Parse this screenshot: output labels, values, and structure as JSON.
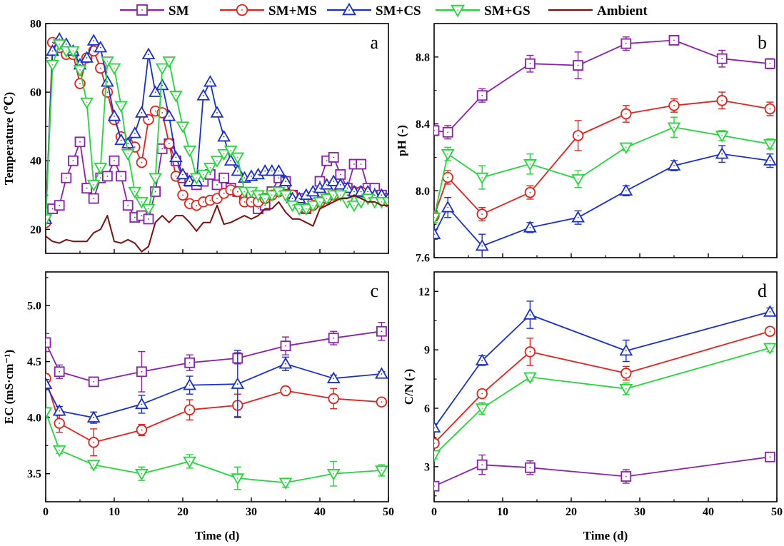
{
  "legend": [
    {
      "label": "SM",
      "color": "#8B1FB0",
      "marker": "square"
    },
    {
      "label": "SM+MS",
      "color": "#E8201A",
      "marker": "circle"
    },
    {
      "label": "SM+CS",
      "color": "#1A2FD0",
      "marker": "triangle-up"
    },
    {
      "label": "SM+GS",
      "color": "#22D838",
      "marker": "triangle-down"
    },
    {
      "label": "Ambient",
      "color": "#7A1010",
      "marker": "none"
    }
  ],
  "chart_data": [
    {
      "id": "a",
      "type": "line",
      "panel_letter": "a",
      "xlabel": "",
      "ylabel": "Temperature (℃)",
      "xlim": [
        0,
        50
      ],
      "ylim": [
        13,
        80
      ],
      "x_ticks": [
        0,
        10,
        20,
        30,
        40,
        50
      ],
      "x_tick_labels": [],
      "y_ticks": [
        20,
        40,
        60,
        80
      ],
      "y_tick_labels": [
        "20",
        "40",
        "60",
        "80"
      ],
      "series": [
        {
          "name": "SM",
          "color": "#8B1FB0",
          "marker": "square",
          "x": [
            0,
            1,
            2,
            3,
            4,
            5,
            6,
            7,
            8,
            9,
            10,
            11,
            12,
            13,
            14,
            15,
            16,
            17,
            18,
            19,
            20,
            21,
            22,
            23,
            24,
            25,
            26,
            27,
            28,
            29,
            30,
            31,
            32,
            33,
            34,
            35,
            36,
            37,
            38,
            39,
            40,
            41,
            42,
            43,
            44,
            45,
            46,
            47,
            48,
            49,
            50
          ],
          "y": [
            25,
            26,
            27,
            35,
            40,
            45.5,
            32,
            29,
            35,
            35.5,
            40,
            35.5,
            27,
            23.5,
            24,
            23,
            31,
            43.5,
            45,
            40,
            35,
            34,
            33,
            34,
            36,
            33,
            35,
            32,
            31,
            30,
            30,
            26,
            27,
            31,
            35,
            34,
            30,
            29,
            26,
            29,
            34,
            40,
            41,
            36,
            32,
            39,
            39,
            32,
            32,
            30,
            29
          ]
        },
        {
          "name": "SM+MS",
          "color": "#E8201A",
          "marker": "circle",
          "x": [
            0,
            1,
            2,
            3,
            4,
            5,
            6,
            7,
            8,
            9,
            10,
            11,
            12,
            13,
            14,
            15,
            16,
            17,
            18,
            19,
            20,
            21,
            22,
            23,
            24,
            25,
            26,
            27,
            28,
            29,
            30,
            31,
            32,
            33,
            34,
            35,
            36,
            37,
            38,
            39,
            40,
            41,
            42,
            43,
            44,
            45,
            46,
            47,
            48,
            49,
            50
          ],
          "y": [
            22,
            74.5,
            73,
            71,
            71,
            62.5,
            70,
            72,
            67,
            60,
            52,
            47,
            45,
            44,
            39.5,
            52,
            54.5,
            54,
            45,
            35.5,
            30,
            27.5,
            27,
            28,
            28.5,
            29,
            30.5,
            31.5,
            31,
            28,
            28,
            28,
            29,
            30,
            31,
            33,
            30,
            27,
            26,
            27,
            28,
            29,
            30,
            31,
            30,
            31,
            31,
            30,
            29,
            29,
            28
          ]
        },
        {
          "name": "SM+CS",
          "color": "#1A2FD0",
          "marker": "triangle-up",
          "x": [
            0,
            1,
            2,
            3,
            4,
            5,
            6,
            7,
            8,
            9,
            10,
            11,
            12,
            13,
            14,
            15,
            16,
            17,
            18,
            19,
            20,
            21,
            22,
            23,
            24,
            25,
            26,
            27,
            28,
            29,
            30,
            31,
            32,
            33,
            34,
            35,
            36,
            37,
            38,
            39,
            40,
            41,
            42,
            43,
            44,
            45,
            46,
            47,
            48,
            49,
            50
          ],
          "y": [
            23,
            72,
            75.5,
            74,
            72,
            68,
            70,
            75,
            73,
            63,
            53,
            46,
            45,
            48,
            54,
            71,
            60,
            62,
            53,
            41,
            36,
            34,
            34,
            59,
            63,
            54,
            47,
            40,
            37,
            35,
            35.5,
            36,
            37,
            37,
            37,
            34,
            29,
            29,
            30,
            31,
            32,
            33,
            34,
            33,
            32,
            31,
            31,
            31,
            30,
            30,
            29
          ]
        },
        {
          "name": "SM+GS",
          "color": "#22D838",
          "marker": "triangle-down",
          "x": [
            0,
            1,
            2,
            3,
            4,
            5,
            6,
            7,
            8,
            9,
            10,
            11,
            12,
            13,
            14,
            15,
            16,
            17,
            18,
            19,
            20,
            21,
            22,
            23,
            24,
            25,
            26,
            27,
            28,
            29,
            30,
            31,
            32,
            33,
            34,
            35,
            36,
            37,
            38,
            39,
            40,
            41,
            42,
            43,
            44,
            45,
            46,
            47,
            48,
            49,
            50
          ],
          "y": [
            23,
            68,
            74,
            72,
            72,
            66.5,
            57,
            33,
            38,
            69,
            67,
            56,
            42,
            31,
            28,
            26,
            35,
            67,
            69,
            59,
            50,
            43,
            35,
            36,
            38,
            40,
            42,
            43,
            41,
            31,
            31,
            30,
            29,
            30,
            31,
            30,
            27,
            26,
            26,
            27,
            28,
            29,
            30,
            30,
            28,
            27,
            28,
            29,
            28,
            28,
            28
          ]
        },
        {
          "name": "Ambient",
          "color": "#7A1010",
          "marker": "none",
          "x": [
            0,
            1,
            2,
            3,
            4,
            5,
            6,
            7,
            8,
            9,
            10,
            11,
            12,
            13,
            14,
            15,
            16,
            17,
            18,
            19,
            20,
            21,
            22,
            23,
            24,
            25,
            26,
            27,
            28,
            29,
            30,
            31,
            32,
            33,
            34,
            35,
            36,
            37,
            38,
            39,
            40,
            41,
            42,
            43,
            44,
            45,
            46,
            47,
            48,
            49,
            50
          ],
          "y": [
            18,
            16.5,
            16,
            17,
            16.5,
            16.5,
            16.5,
            19,
            20,
            24,
            16.5,
            16,
            17,
            16,
            13.5,
            15,
            22,
            24,
            22,
            24,
            24,
            22,
            19.5,
            22,
            22,
            27,
            21.5,
            22,
            23,
            24,
            23,
            24,
            26,
            26,
            28,
            25,
            23,
            23,
            22,
            21,
            26,
            27,
            28,
            29,
            29,
            30,
            29,
            28,
            28,
            27,
            27
          ]
        }
      ]
    },
    {
      "id": "b",
      "type": "line",
      "panel_letter": "b",
      "xlabel": "",
      "ylabel": "pH (-)",
      "xlim": [
        0,
        50
      ],
      "ylim": [
        7.6,
        9.0
      ],
      "x_ticks": [
        0,
        10,
        20,
        30,
        40,
        50
      ],
      "x_tick_labels": [],
      "y_ticks": [
        7.6,
        8.0,
        8.4,
        8.8
      ],
      "y_tick_labels": [
        "7.6",
        "8.0",
        "8.4",
        "8.8"
      ],
      "series": [
        {
          "name": "SM",
          "color": "#8B1FB0",
          "marker": "square",
          "x": [
            0,
            2,
            7,
            14,
            21,
            28,
            35,
            42,
            49
          ],
          "y": [
            8.36,
            8.35,
            8.57,
            8.76,
            8.75,
            8.88,
            8.9,
            8.79,
            8.76
          ],
          "err": [
            0.03,
            0.04,
            0.04,
            0.05,
            0.08,
            0.04,
            0.02,
            0.05,
            0.03
          ]
        },
        {
          "name": "SM+MS",
          "color": "#E8201A",
          "marker": "circle",
          "x": [
            0,
            2,
            7,
            14,
            21,
            28,
            35,
            42,
            49
          ],
          "y": [
            7.85,
            8.08,
            7.86,
            7.99,
            8.33,
            8.46,
            8.51,
            8.54,
            8.49
          ],
          "err": [
            0.03,
            0.04,
            0.04,
            0.04,
            0.09,
            0.05,
            0.04,
            0.05,
            0.04
          ]
        },
        {
          "name": "SM+CS",
          "color": "#1A2FD0",
          "marker": "triangle-up",
          "x": [
            0,
            2,
            7,
            14,
            21,
            28,
            35,
            42,
            49
          ],
          "y": [
            7.74,
            7.9,
            7.67,
            7.78,
            7.84,
            8.0,
            8.15,
            8.22,
            8.18
          ],
          "err": [
            0.03,
            0.06,
            0.07,
            0.03,
            0.04,
            0.03,
            0.03,
            0.05,
            0.04
          ]
        },
        {
          "name": "SM+GS",
          "color": "#22D838",
          "marker": "triangle-down",
          "x": [
            0,
            2,
            7,
            14,
            21,
            28,
            35,
            42,
            49
          ],
          "y": [
            7.84,
            8.22,
            8.08,
            8.16,
            8.07,
            8.26,
            8.38,
            8.33,
            8.28
          ],
          "err": [
            0.03,
            0.04,
            0.07,
            0.06,
            0.05,
            0.02,
            0.06,
            0.03,
            0.03
          ]
        }
      ]
    },
    {
      "id": "c",
      "type": "line",
      "panel_letter": "c",
      "xlabel": "Time (d)",
      "ylabel": "EC (mS·cm⁻¹)",
      "xlim": [
        0,
        50
      ],
      "ylim": [
        3.25,
        5.3
      ],
      "x_ticks": [
        0,
        10,
        20,
        30,
        40,
        50
      ],
      "x_tick_labels": [
        "0",
        "10",
        "20",
        "30",
        "40",
        "50"
      ],
      "y_ticks": [
        3.5,
        4.0,
        4.5,
        5.0
      ],
      "y_tick_labels": [
        "3.5",
        "4.0",
        "4.5",
        "5.0"
      ],
      "series": [
        {
          "name": "SM",
          "color": "#8B1FB0",
          "marker": "square",
          "x": [
            0,
            2,
            7,
            14,
            21,
            28,
            35,
            42,
            49
          ],
          "y": [
            4.67,
            4.41,
            4.32,
            4.41,
            4.49,
            4.53,
            4.64,
            4.71,
            4.77
          ],
          "err": [
            0.08,
            0.06,
            0.04,
            0.18,
            0.07,
            0.05,
            0.08,
            0.06,
            0.08
          ]
        },
        {
          "name": "SM+MS",
          "color": "#E8201A",
          "marker": "circle",
          "x": [
            0,
            2,
            7,
            14,
            21,
            28,
            35,
            42,
            49
          ],
          "y": [
            4.35,
            3.95,
            3.78,
            3.89,
            4.07,
            4.11,
            4.24,
            4.17,
            4.14
          ],
          "err": [
            0.04,
            0.08,
            0.12,
            0.05,
            0.09,
            0.1,
            0.03,
            0.09,
            0.03
          ]
        },
        {
          "name": "SM+CS",
          "color": "#1A2FD0",
          "marker": "triangle-up",
          "x": [
            0,
            2,
            7,
            14,
            21,
            28,
            35,
            42,
            49
          ],
          "y": [
            4.3,
            4.06,
            4.0,
            4.12,
            4.29,
            4.3,
            4.48,
            4.35,
            4.39
          ],
          "err": [
            0.04,
            0.04,
            0.05,
            0.08,
            0.08,
            0.3,
            0.06,
            0.03,
            0.02
          ]
        },
        {
          "name": "SM+GS",
          "color": "#22D838",
          "marker": "triangle-down",
          "x": [
            0,
            2,
            7,
            14,
            21,
            28,
            35,
            42,
            49
          ],
          "y": [
            4.05,
            3.71,
            3.58,
            3.5,
            3.61,
            3.46,
            3.42,
            3.5,
            3.53
          ],
          "err": [
            0.04,
            0.03,
            0.03,
            0.06,
            0.06,
            0.1,
            0.04,
            0.11,
            0.05
          ]
        }
      ]
    },
    {
      "id": "d",
      "type": "line",
      "panel_letter": "d",
      "xlabel": "Time (d)",
      "ylabel": "C/N (-)",
      "xlim": [
        0,
        50
      ],
      "ylim": [
        1.2,
        13.0
      ],
      "x_ticks": [
        0,
        10,
        20,
        30,
        40,
        50
      ],
      "x_tick_labels": [
        "0",
        "10",
        "20",
        "30",
        "40",
        "50"
      ],
      "y_ticks": [
        3,
        6,
        9,
        12
      ],
      "y_tick_labels": [
        "3",
        "6",
        "9",
        "12"
      ],
      "series": [
        {
          "name": "SM",
          "color": "#8B1FB0",
          "marker": "square",
          "x": [
            0,
            7,
            14,
            28,
            49
          ],
          "y": [
            2.0,
            3.1,
            2.95,
            2.5,
            3.5
          ],
          "err": [
            0.2,
            0.5,
            0.35,
            0.35,
            0.2
          ]
        },
        {
          "name": "SM+MS",
          "color": "#E8201A",
          "marker": "circle",
          "x": [
            0,
            7,
            14,
            28,
            49
          ],
          "y": [
            4.2,
            6.75,
            8.9,
            7.8,
            9.95
          ],
          "err": [
            0.2,
            0.2,
            0.7,
            0.35,
            0.2
          ]
        },
        {
          "name": "SM+CS",
          "color": "#1A2FD0",
          "marker": "triangle-up",
          "x": [
            0,
            7,
            14,
            28,
            49
          ],
          "y": [
            5.0,
            8.45,
            10.8,
            8.95,
            10.95
          ],
          "err": [
            0.2,
            0.25,
            0.7,
            0.55,
            0.2
          ]
        },
        {
          "name": "SM+GS",
          "color": "#22D838",
          "marker": "triangle-down",
          "x": [
            0,
            7,
            14,
            28,
            49
          ],
          "y": [
            3.6,
            6.0,
            7.6,
            7.0,
            9.1
          ],
          "err": [
            0.2,
            0.3,
            0.2,
            0.3,
            0.2
          ]
        }
      ]
    }
  ]
}
